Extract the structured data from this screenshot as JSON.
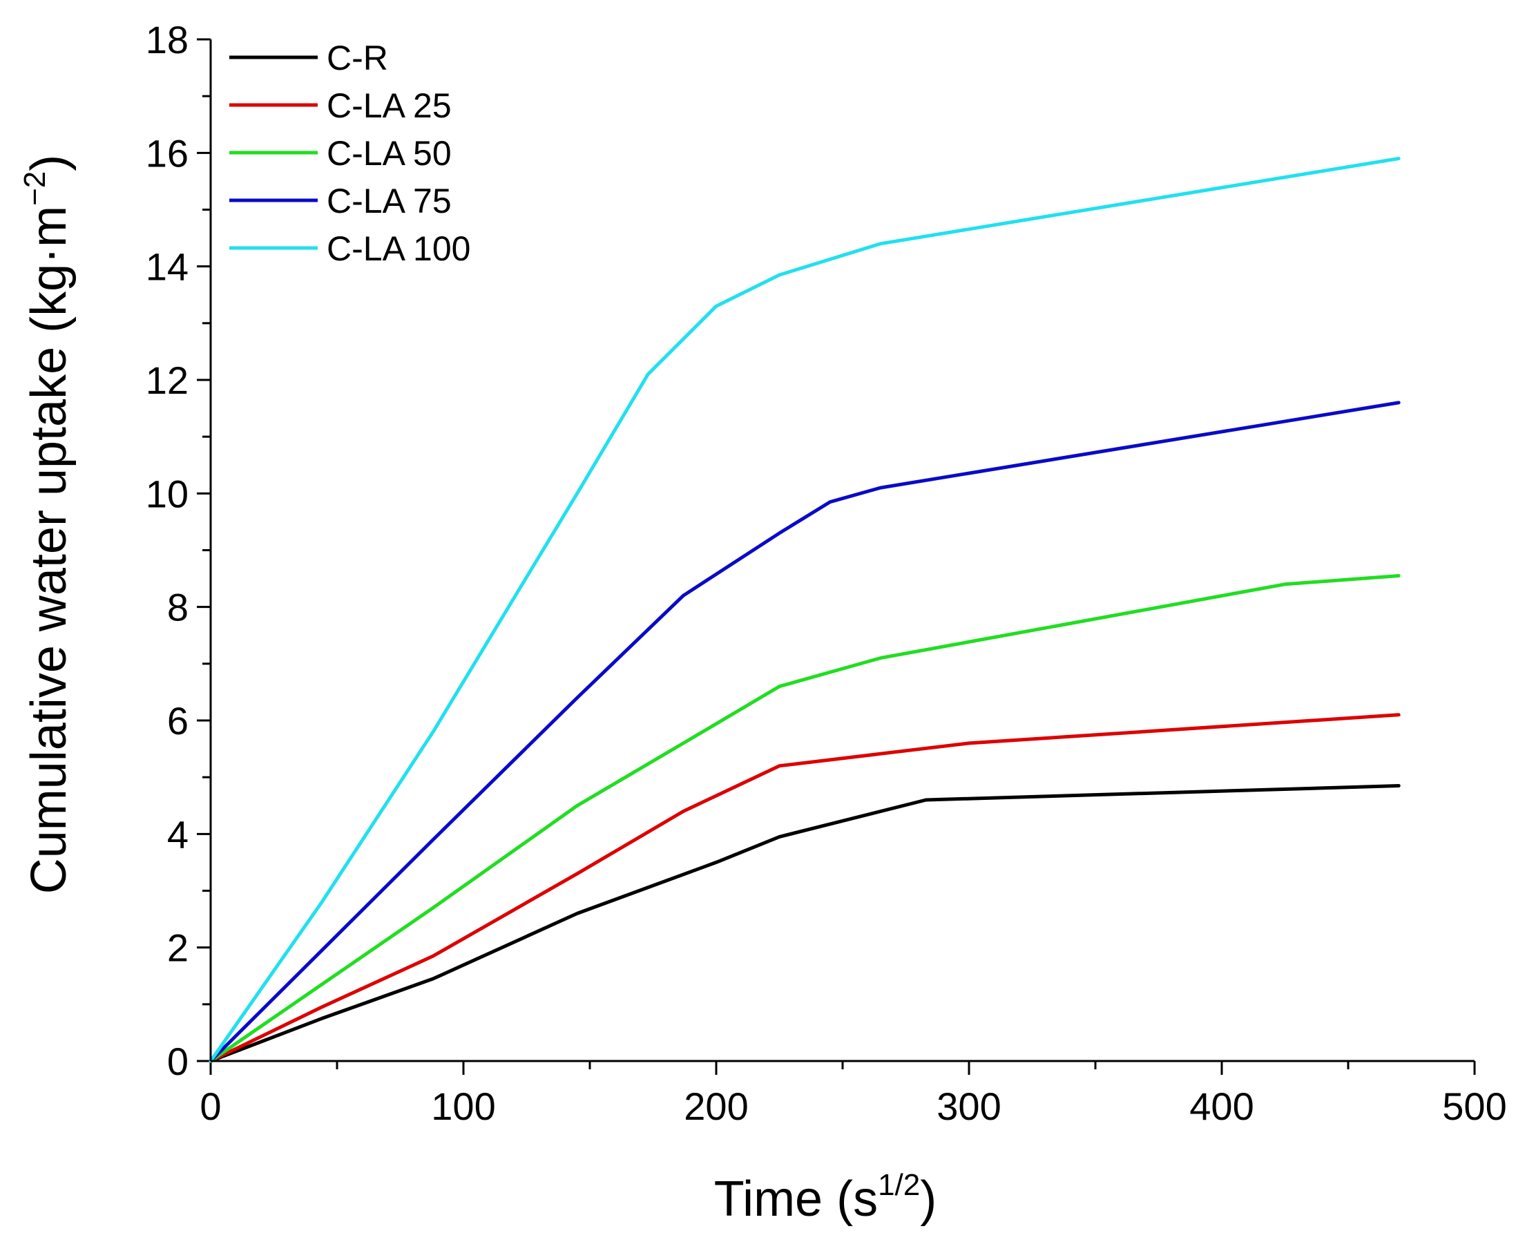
{
  "chart_data": {
    "type": "line",
    "xlabel_text": "Time (s",
    "xlabel_sup": "1/2",
    "xlabel_close": ")",
    "ylabel_text": "Cumulative water uptake (kg·m",
    "ylabel_sup": "−2",
    "ylabel_close": ")",
    "xlim": [
      0,
      500
    ],
    "ylim": [
      0,
      18
    ],
    "x_ticks": [
      "0",
      "100",
      "200",
      "300",
      "400",
      "500"
    ],
    "y_ticks": [
      "0",
      "2",
      "4",
      "6",
      "8",
      "10",
      "12",
      "14",
      "16",
      "18"
    ],
    "grid": false,
    "legend_position": "top-left",
    "series": [
      {
        "name": "C-R",
        "color": "#000000",
        "x": [
          0,
          44,
          88,
          145,
          200,
          225,
          283,
          470
        ],
        "y": [
          0,
          0.75,
          1.45,
          2.6,
          3.5,
          3.95,
          4.6,
          4.85
        ]
      },
      {
        "name": "C-LA 25",
        "color": "#dd0000",
        "x": [
          0,
          44,
          88,
          145,
          187,
          225,
          300,
          470
        ],
        "y": [
          0,
          0.95,
          1.85,
          3.3,
          4.4,
          5.2,
          5.6,
          6.1
        ]
      },
      {
        "name": "C-LA 50",
        "color": "#22dd22",
        "x": [
          0,
          44,
          88,
          145,
          187,
          225,
          265,
          425,
          470
        ],
        "y": [
          0,
          1.35,
          2.7,
          4.5,
          5.6,
          6.6,
          7.1,
          8.4,
          8.55
        ]
      },
      {
        "name": "C-LA 75",
        "color": "#0a0ac8",
        "x": [
          0,
          44,
          88,
          145,
          187,
          225,
          245,
          265,
          470
        ],
        "y": [
          0,
          1.95,
          3.9,
          6.4,
          8.2,
          9.3,
          9.85,
          10.1,
          11.6
        ]
      },
      {
        "name": "C-LA 100",
        "color": "#22e0ee",
        "x": [
          0,
          44,
          88,
          145,
          173,
          200,
          225,
          265,
          470
        ],
        "y": [
          0,
          2.8,
          5.8,
          10.0,
          12.1,
          13.3,
          13.85,
          14.4,
          15.9
        ]
      }
    ]
  }
}
